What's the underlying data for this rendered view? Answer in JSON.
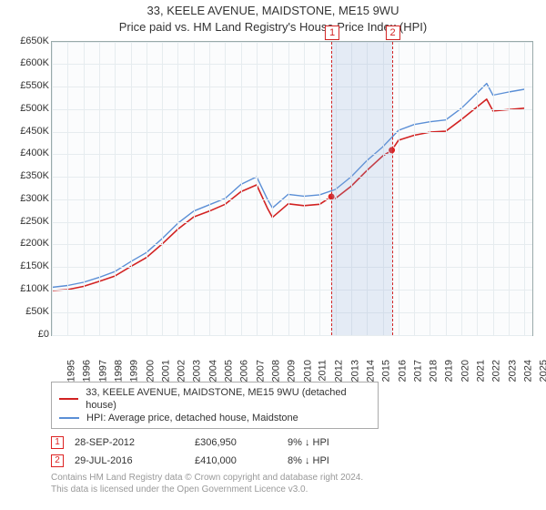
{
  "title": {
    "line1": "33, KEELE AVENUE, MAIDSTONE, ME15 9WU",
    "line2": "Price paid vs. HM Land Registry's House Price Index (HPI)"
  },
  "chart": {
    "type": "line",
    "background_color": "#fbfcfd",
    "grid_color": "#e6ecef",
    "border_color": "#99aaaa",
    "x": {
      "min": 1995,
      "max": 2025.5,
      "ticks": [
        1995,
        1996,
        1997,
        1998,
        1999,
        2000,
        2001,
        2002,
        2003,
        2004,
        2005,
        2006,
        2007,
        2008,
        2009,
        2010,
        2011,
        2012,
        2013,
        2014,
        2015,
        2016,
        2017,
        2018,
        2019,
        2020,
        2021,
        2022,
        2023,
        2024,
        2025
      ]
    },
    "y": {
      "min": 0,
      "max": 650000,
      "step": 50000,
      "ticks": [
        0,
        50000,
        100000,
        150000,
        200000,
        250000,
        300000,
        350000,
        400000,
        450000,
        500000,
        550000,
        600000,
        650000
      ],
      "tick_prefix": "£",
      "tick_suffix": "K",
      "tick_divisor": 1000
    },
    "plot_band": {
      "from": 2012.74,
      "to": 2016.58,
      "color": "rgba(140,170,215,0.20)"
    },
    "plot_lines": [
      {
        "x": 2012.74,
        "label": "1",
        "color": "#d22222"
      },
      {
        "x": 2016.58,
        "label": "2",
        "color": "#d22222"
      }
    ],
    "series": [
      {
        "name": "33, KEELE AVENUE, MAIDSTONE, ME15 9WU (detached house)",
        "color": "#d22222",
        "line_width": 1.6,
        "data": [
          [
            1995,
            99000
          ],
          [
            1996,
            101000
          ],
          [
            1997,
            108000
          ],
          [
            1998,
            119000
          ],
          [
            1999,
            131000
          ],
          [
            2000,
            152000
          ],
          [
            2001,
            172000
          ],
          [
            2002,
            202000
          ],
          [
            2003,
            235000
          ],
          [
            2004,
            262000
          ],
          [
            2005,
            275000
          ],
          [
            2006,
            290000
          ],
          [
            2007,
            318000
          ],
          [
            2008,
            333000
          ],
          [
            2008.7,
            280000
          ],
          [
            2009,
            261000
          ],
          [
            2010,
            291000
          ],
          [
            2011,
            287000
          ],
          [
            2012,
            290000
          ],
          [
            2012.74,
            306950
          ],
          [
            2013,
            303000
          ],
          [
            2014,
            330000
          ],
          [
            2015,
            365000
          ],
          [
            2016,
            397000
          ],
          [
            2016.58,
            410000
          ],
          [
            2017,
            432000
          ],
          [
            2018,
            443000
          ],
          [
            2019,
            450000
          ],
          [
            2020,
            452000
          ],
          [
            2021,
            478000
          ],
          [
            2022,
            506000
          ],
          [
            2022.6,
            523000
          ],
          [
            2023,
            497000
          ],
          [
            2024,
            500000
          ],
          [
            2025,
            503000
          ]
        ],
        "markers": [
          {
            "x": 2012.74,
            "y": 306950
          },
          {
            "x": 2016.58,
            "y": 410000
          }
        ]
      },
      {
        "name": "HPI: Average price, detached house, Maidstone",
        "color": "#5b8fd6",
        "line_width": 1.4,
        "data": [
          [
            1995,
            106000
          ],
          [
            1996,
            110000
          ],
          [
            1997,
            117000
          ],
          [
            1998,
            128000
          ],
          [
            1999,
            141000
          ],
          [
            2000,
            163000
          ],
          [
            2001,
            183000
          ],
          [
            2002,
            214000
          ],
          [
            2003,
            248000
          ],
          [
            2004,
            275000
          ],
          [
            2005,
            289000
          ],
          [
            2006,
            303000
          ],
          [
            2007,
            334000
          ],
          [
            2008,
            351000
          ],
          [
            2008.7,
            300000
          ],
          [
            2009,
            282000
          ],
          [
            2010,
            312000
          ],
          [
            2011,
            308000
          ],
          [
            2012,
            311000
          ],
          [
            2013,
            323000
          ],
          [
            2014,
            351000
          ],
          [
            2015,
            387000
          ],
          [
            2016,
            417000
          ],
          [
            2017,
            454000
          ],
          [
            2018,
            467000
          ],
          [
            2019,
            473000
          ],
          [
            2020,
            477000
          ],
          [
            2021,
            503000
          ],
          [
            2022,
            537000
          ],
          [
            2022.6,
            558000
          ],
          [
            2023,
            532000
          ],
          [
            2024,
            539000
          ],
          [
            2025,
            545000
          ]
        ]
      }
    ]
  },
  "legend": [
    {
      "color": "#d22222",
      "label": "33, KEELE AVENUE, MAIDSTONE, ME15 9WU (detached house)"
    },
    {
      "color": "#5b8fd6",
      "label": "HPI: Average price, detached house, Maidstone"
    }
  ],
  "transactions": [
    {
      "num": "1",
      "date": "28-SEP-2012",
      "price": "£306,950",
      "diff": "9% ↓ HPI"
    },
    {
      "num": "2",
      "date": "29-JUL-2016",
      "price": "£410,000",
      "diff": "8% ↓ HPI"
    }
  ],
  "footnote": {
    "line1": "Contains HM Land Registry data © Crown copyright and database right 2024.",
    "line2": "This data is licensed under the Open Government Licence v3.0."
  }
}
